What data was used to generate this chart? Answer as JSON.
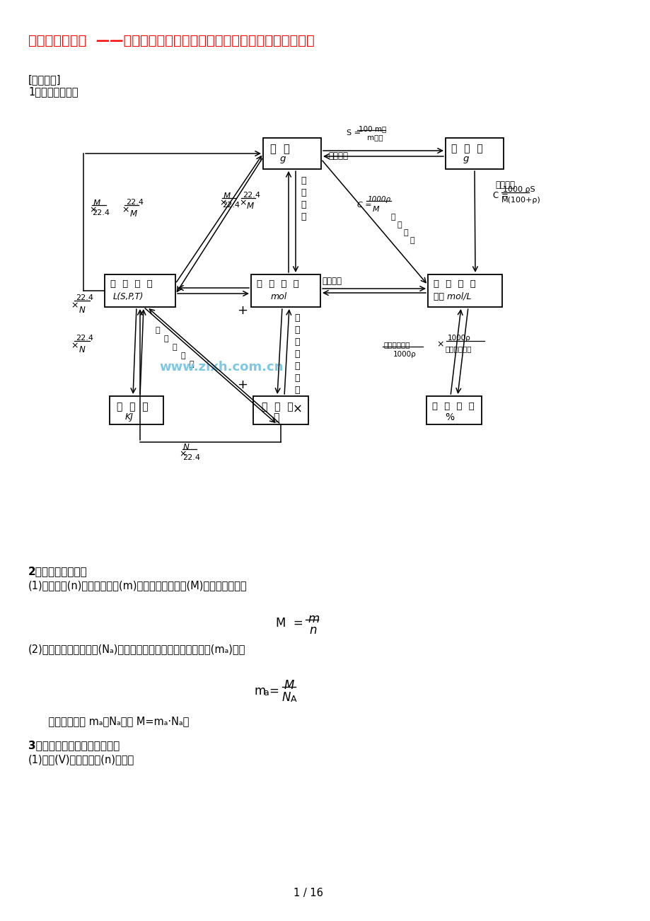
{
  "title": "化学计算专题二  ——物质的量、气体摩尔体积、燃烧及关于方程式的计算",
  "title_color": "#FF0000",
  "bg_color": "#FFFFFF",
  "watermark": "www.zixh.com.cn",
  "section1_header": "[知识指津]",
  "section1_sub": "1．本章知识网络",
  "section2_header": "2．摩尔质量的计算",
  "section2_p1": "(1)物质的量(n)、物质的质量(m)和物质的摩尔质量(M)之间的关系为：",
  "section2_p2": "(2)已知阿伏加德罗常数(Nₐ)和摩尔质量，则一个某粒子的质量(mₐ)为：",
  "section2_p3": "    同理，若已知 mₐ、Nₐ，则 M=mₐ·Nₐ。",
  "section3_header": "3．标准状况下气体体积的计算",
  "section3_p1": "(1)体积(V)与物质的量(n)的关系",
  "page_num": "1 / 16"
}
